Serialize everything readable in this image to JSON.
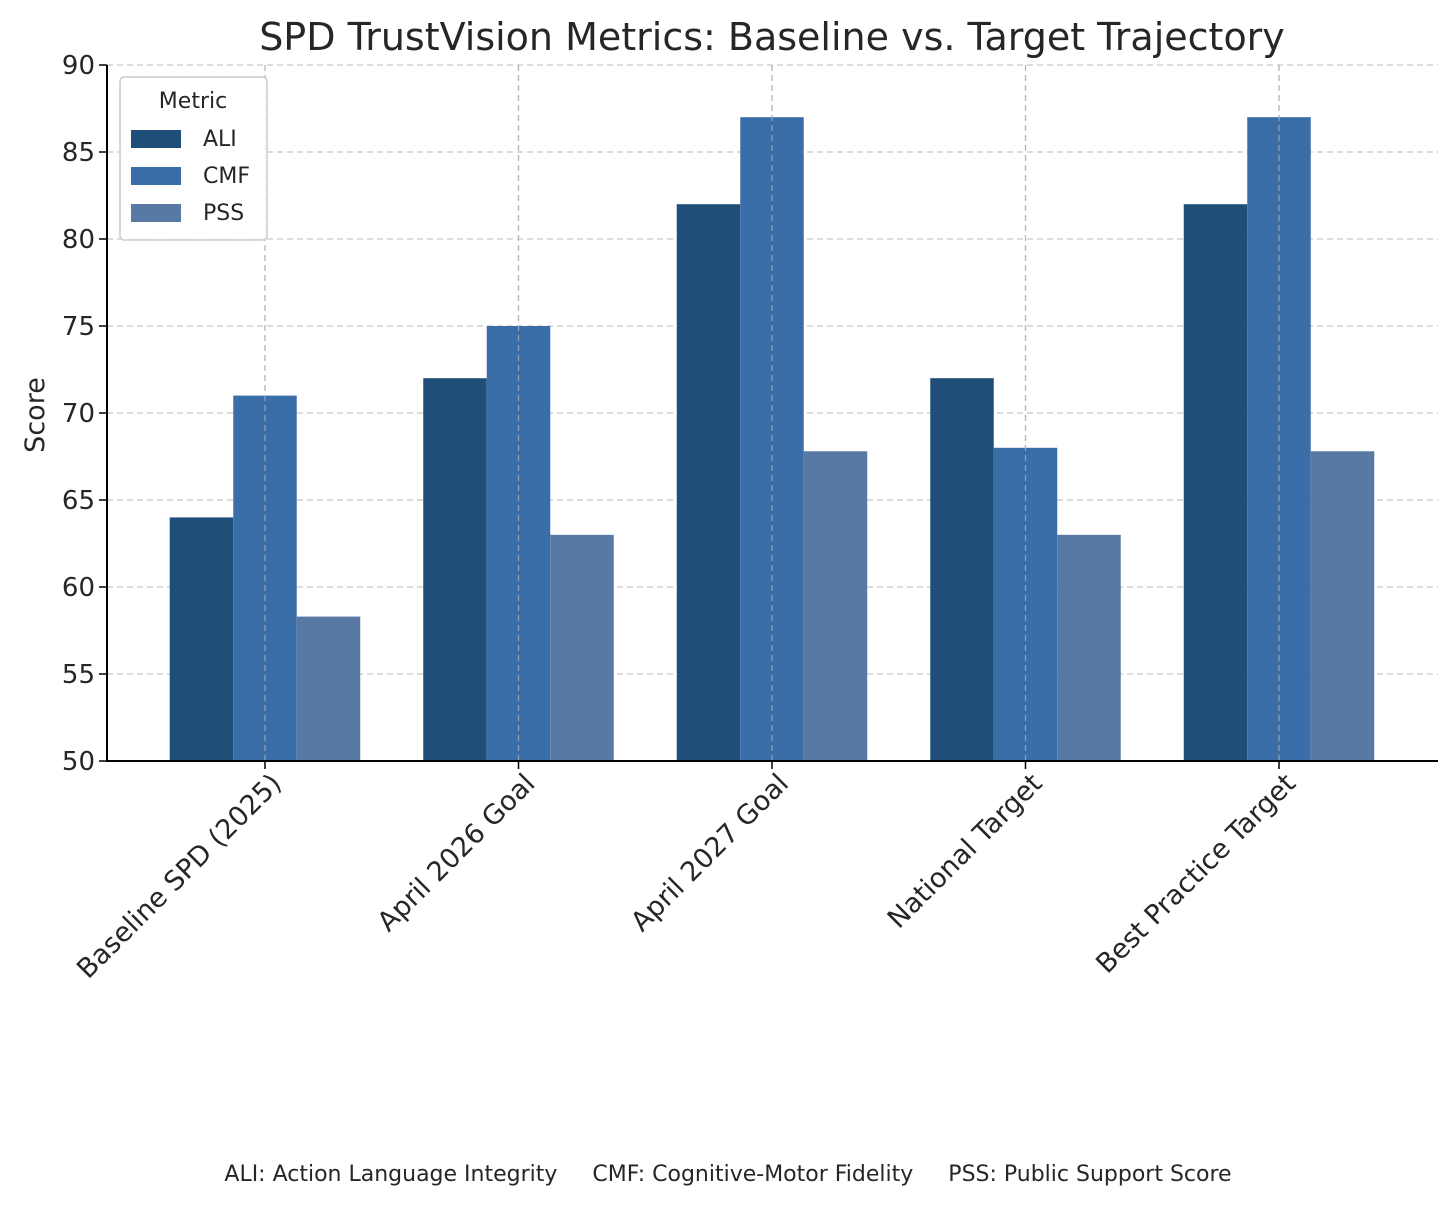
{
  "chart_data": {
    "type": "bar",
    "title": "SPD TrustVision Metrics: Baseline vs. Target Trajectory",
    "xlabel": "",
    "ylabel": "Score",
    "ylim": [
      50,
      90
    ],
    "yticks": [
      50,
      55,
      60,
      65,
      70,
      75,
      80,
      85,
      90
    ],
    "grid": true,
    "categories": [
      "Baseline SPD (2025)",
      "April 2026 Goal",
      "April 2027 Goal",
      "National Target",
      "Best Practice Target"
    ],
    "series": [
      {
        "name": "ALI",
        "color": "#1f4e79",
        "values": [
          64,
          72,
          82,
          72,
          82
        ]
      },
      {
        "name": "CMF",
        "color": "#3a6ea8",
        "values": [
          71,
          75,
          87,
          68,
          87
        ]
      },
      {
        "name": "PSS",
        "color": "#5779a4",
        "values": [
          58.3,
          63,
          67.8,
          63,
          67.8
        ]
      }
    ],
    "legend": {
      "title": "Metric",
      "placement": "top-left"
    }
  },
  "footnote": {
    "ali": "ALI: Action Language Integrity",
    "cmf": "CMF: Cognitive-Motor Fidelity",
    "pss": "PSS: Public Support Score"
  }
}
